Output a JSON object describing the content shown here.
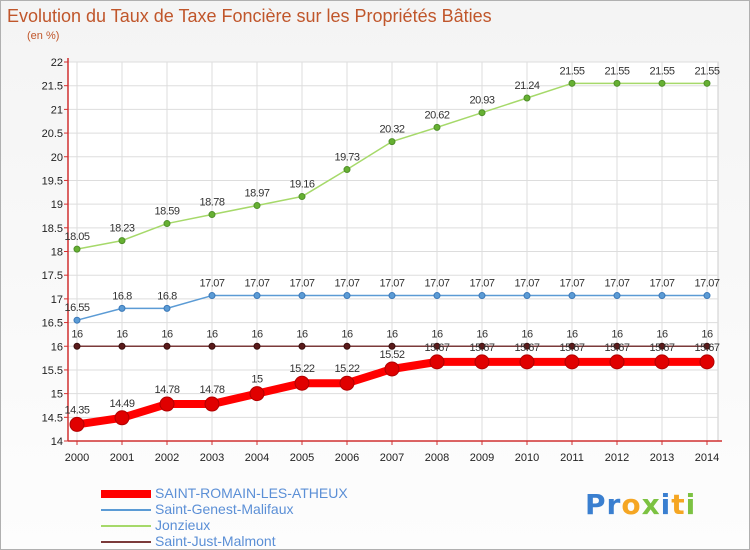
{
  "title": "Evolution du Taux de Taxe Foncière sur les Propriétés Bâties",
  "unit": "(en %)",
  "logo": {
    "p": "Pr",
    "o": "o",
    "x": "x",
    "i": "i",
    "t": "t",
    "i2": "i"
  },
  "colors": {
    "axis": "#d03030",
    "grid": "#dddddd",
    "saint_romain": "#ff0000",
    "saint_romain_marker": "#e00000",
    "saint_genest": "#5b9bd5",
    "jonzieux": "#a6d96a",
    "jonzieux_marker": "#66b032",
    "saint_just": "#7b3a3a",
    "saint_just_marker": "#5a1a1a"
  },
  "chart_data": {
    "type": "line",
    "title": "Evolution du Taux de Taxe Foncière sur les Propriétés Bâties",
    "ylabel": "(en %)",
    "xlabel": "",
    "ylim": [
      14,
      22
    ],
    "yticks": [
      "14",
      "14.5",
      "15",
      "15.5",
      "16",
      "16.5",
      "17",
      "17.5",
      "18",
      "18.5",
      "19",
      "19.5",
      "20",
      "20.5",
      "21",
      "21.5",
      "22"
    ],
    "x": [
      "2000",
      "2001",
      "2002",
      "2003",
      "2004",
      "2005",
      "2006",
      "2007",
      "2008",
      "2009",
      "2010",
      "2011",
      "2012",
      "2013",
      "2014"
    ],
    "series": [
      {
        "name": "Saint-Genest-Malifaux",
        "key": "saint_genest",
        "values": [
          16.55,
          16.8,
          16.8,
          17.07,
          17.07,
          17.07,
          17.07,
          17.07,
          17.07,
          17.07,
          17.07,
          17.07,
          17.07,
          17.07,
          17.07
        ],
        "labels": [
          "16.55",
          "16.8",
          "16.8",
          "17.07",
          "17.07",
          "17.07",
          "17.07",
          "17.07",
          "17.07",
          "17.07",
          "17.07",
          "17.07",
          "17.07",
          "17.07",
          "17.07"
        ]
      },
      {
        "name": "Jonzieux",
        "key": "jonzieux",
        "values": [
          18.05,
          18.23,
          18.59,
          18.78,
          18.97,
          19.16,
          19.73,
          20.32,
          20.62,
          20.93,
          21.24,
          21.55,
          21.55,
          21.55,
          21.55
        ],
        "labels": [
          "18.05",
          "18.23",
          "18.59",
          "18.78",
          "18.97",
          "19.16",
          "19.73",
          "20.32",
          "20.62",
          "20.93",
          "21.24",
          "21.55",
          "21.55",
          "21.55",
          "21.55"
        ]
      },
      {
        "name": "Saint-Just-Malmont",
        "key": "saint_just",
        "values": [
          16,
          16,
          16,
          16,
          16,
          16,
          16,
          16,
          16,
          16,
          16,
          16,
          16,
          16,
          16
        ],
        "labels": [
          "16",
          "16",
          "16",
          "16",
          "16",
          "16",
          "16",
          "16",
          "16",
          "16",
          "16",
          "16",
          "16",
          "16",
          "16"
        ]
      },
      {
        "name": "SAINT-ROMAIN-LES-ATHEUX",
        "key": "saint_romain",
        "values": [
          14.35,
          14.49,
          14.78,
          14.78,
          15,
          15.22,
          15.22,
          15.52,
          15.67,
          15.67,
          15.67,
          15.67,
          15.67,
          15.67,
          15.67
        ],
        "labels": [
          "14.35",
          "14.49",
          "14.78",
          "14.78",
          "15",
          "15.22",
          "15.22",
          "15.52",
          "15.67",
          "15.67",
          "15.67",
          "15.67",
          "15.67",
          "15.67",
          "15.67"
        ]
      }
    ],
    "legend": [
      "SAINT-ROMAIN-LES-ATHEUX",
      "Saint-Genest-Malifaux",
      "Jonzieux",
      "Saint-Just-Malmont"
    ],
    "legend_position": "bottom-left"
  }
}
